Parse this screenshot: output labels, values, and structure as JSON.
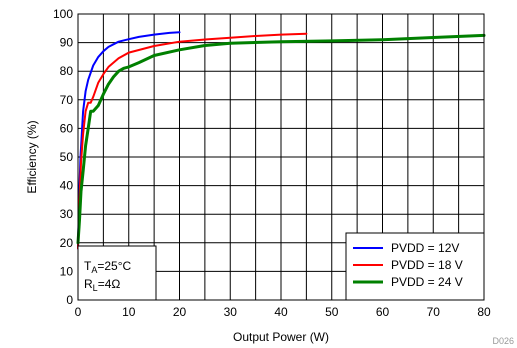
{
  "chart_data": {
    "type": "line",
    "xlabel": "Output Power (W)",
    "ylabel": "Efficiency (%)",
    "xlim": [
      0,
      80
    ],
    "ylim": [
      0,
      100
    ],
    "x_ticks": [
      "0",
      "10",
      "20",
      "30",
      "40",
      "50",
      "60",
      "70",
      "80"
    ],
    "y_ticks": [
      "0",
      "10",
      "20",
      "30",
      "40",
      "50",
      "60",
      "70",
      "80",
      "90",
      "100"
    ],
    "grid": true,
    "legend_position": "bottom-right",
    "series": [
      {
        "name": "PVDD = 12V",
        "color": "#0000ff",
        "x": [
          0.0,
          0.2,
          0.5,
          0.8,
          1.0,
          1.5,
          2.0,
          3.0,
          4.0,
          5.0,
          6.0,
          8.0,
          10.0,
          12.0,
          15.0,
          18.0,
          20.0
        ],
        "y": [
          18,
          35,
          50,
          60,
          66,
          73,
          77,
          82,
          85,
          87,
          88.5,
          90.3,
          91.2,
          92,
          92.8,
          93.4,
          93.6
        ]
      },
      {
        "name": "PVDD = 18 V",
        "color": "#ff0000",
        "x": [
          0.0,
          0.3,
          0.6,
          1.0,
          1.5,
          2.0,
          2.5,
          3.0,
          4.0,
          5.0,
          6.0,
          8.0,
          10.0,
          15.0,
          20.0,
          25.0,
          30.0,
          35.0,
          40.0,
          45.0
        ],
        "y": [
          18,
          35,
          48,
          58,
          66,
          69,
          69,
          71,
          76,
          79,
          81.5,
          84.5,
          86.5,
          88.8,
          90.3,
          91.1,
          91.7,
          92.3,
          92.8,
          93.1
        ]
      },
      {
        "name": "PVDD = 24 V",
        "color": "#008000",
        "x": [
          0.0,
          0.3,
          0.6,
          1.0,
          1.5,
          2.0,
          2.5,
          3.0,
          4.0,
          5.0,
          6.0,
          7.0,
          8.0,
          9.0,
          10.0,
          12.0,
          15.0,
          20.0,
          25.0,
          30.0,
          40.0,
          50.0,
          60.0,
          70.0,
          80.0
        ],
        "y": [
          20,
          28,
          38,
          45,
          54,
          60,
          66,
          66,
          68,
          72,
          75.5,
          78,
          80,
          81,
          81.5,
          83,
          85.5,
          87.5,
          89,
          89.8,
          90.3,
          90.6,
          91,
          91.8,
          92.5
        ]
      }
    ],
    "annotation": {
      "line1_main": "T",
      "line1_sub": "A",
      "line1_rest": "=25°C",
      "line2_main": "R",
      "line2_sub": "L",
      "line2_rest": "=4Ω"
    },
    "figure_code": "D026"
  }
}
